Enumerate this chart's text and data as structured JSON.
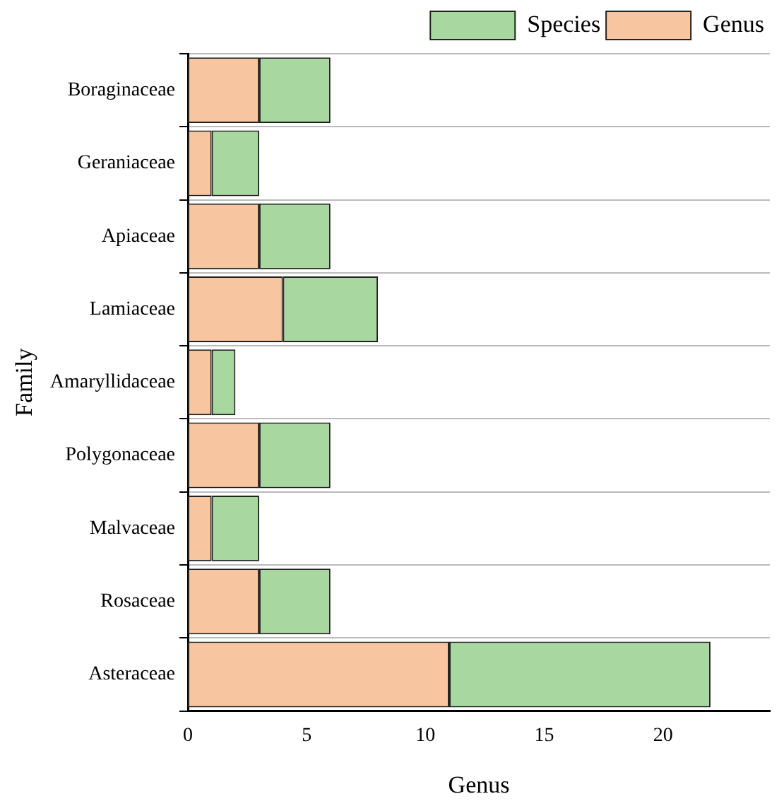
{
  "chart_data": {
    "type": "bar",
    "orientation": "horizontal",
    "stacked": true,
    "xlabel": "Genus",
    "ylabel": "Family",
    "categories": [
      "Boraginaceae",
      "Geraniaceae",
      "Apiaceae",
      "Lamiaceae",
      "Amaryllidaceae",
      "Polygonaceae",
      "Malvaceae",
      "Rosaceae",
      "Asteraceae"
    ],
    "series": [
      {
        "name": "Genus",
        "color": "#f7c5a0",
        "values": [
          3,
          1,
          3,
          4,
          1,
          3,
          1,
          3,
          11
        ]
      },
      {
        "name": "Species",
        "color": "#a8d8a0",
        "values": [
          3,
          2,
          3,
          4,
          1,
          3,
          2,
          3,
          11
        ]
      }
    ],
    "xlim": [
      0,
      24.5
    ],
    "xticks": [
      0,
      5,
      10,
      15,
      20
    ],
    "grid": "y",
    "legend": "top right"
  }
}
